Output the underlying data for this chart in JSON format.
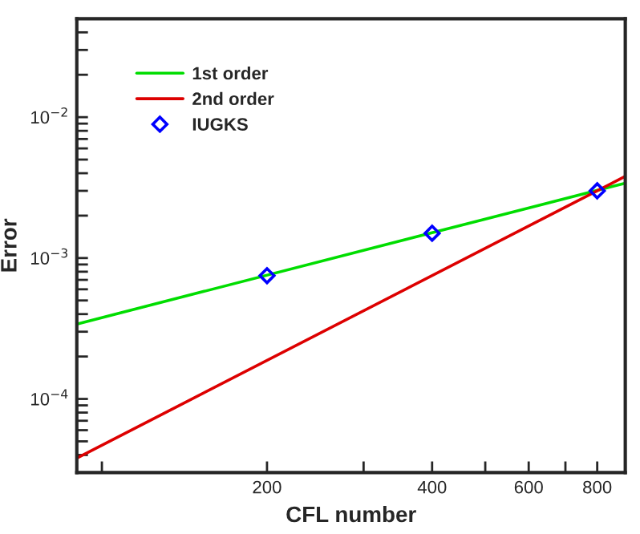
{
  "chart_data": {
    "type": "line",
    "xlabel": "CFL number",
    "ylabel": "Error",
    "log": "xy",
    "xlim": [
      90,
      900
    ],
    "ylim": [
      3e-05,
      0.05
    ],
    "xticks": [
      {
        "value": 100,
        "label": null
      },
      200,
      {
        "value": 300,
        "label": null
      },
      400,
      {
        "value": 500,
        "label": null
      },
      600,
      {
        "value": 700,
        "label": null
      },
      800,
      {
        "value": 900,
        "label": null
      }
    ],
    "yticks": [
      {
        "value": 4e-05,
        "label": null
      },
      {
        "value": 5e-05,
        "label": null
      },
      {
        "value": 6e-05,
        "label": null
      },
      {
        "value": 7e-05,
        "label": null
      },
      {
        "value": 8e-05,
        "label": null
      },
      {
        "value": 9e-05,
        "label": null
      },
      {
        "value": 0.0001,
        "label": "10$^{−4}$"
      },
      {
        "value": 0.0002,
        "label": null
      },
      {
        "value": 0.0003,
        "label": null
      },
      {
        "value": 0.0004,
        "label": null
      },
      {
        "value": 0.0005,
        "label": null
      },
      {
        "value": 0.0006,
        "label": null
      },
      {
        "value": 0.0007,
        "label": null
      },
      {
        "value": 0.0008,
        "label": null
      },
      {
        "value": 0.0009,
        "label": null
      },
      {
        "value": 0.001,
        "label": "10$^{−3}$"
      },
      {
        "value": 0.002,
        "label": null
      },
      {
        "value": 0.003,
        "label": null
      },
      {
        "value": 0.004,
        "label": null
      },
      {
        "value": 0.005,
        "label": null
      },
      {
        "value": 0.006,
        "label": null
      },
      {
        "value": 0.007,
        "label": null
      },
      {
        "value": 0.008,
        "label": null
      },
      {
        "value": 0.009,
        "label": null
      },
      {
        "value": 0.01,
        "label": "10$^{−2}$"
      },
      {
        "value": 0.02,
        "label": null
      },
      {
        "value": 0.03,
        "label": null
      },
      {
        "value": 0.04,
        "label": null
      }
    ],
    "grid": false,
    "legend": "top left",
    "series": [
      {
        "name": "1st order",
        "type": "line",
        "color": "#00dd00",
        "x": [
          90,
          900
        ],
        "values": [
          0.00034,
          0.0034
        ],
        "marker": "none",
        "line_style": "solid"
      },
      {
        "name": "2nd order",
        "type": "line",
        "color": "#dd0000",
        "x": [
          90,
          900
        ],
        "values": [
          3.8e-05,
          0.0038
        ],
        "marker": "none",
        "line_style": "solid"
      },
      {
        "name": "IUGKS",
        "type": "scatter",
        "color": "#0000ff",
        "x": [
          200,
          400,
          800
        ],
        "values": [
          0.00075,
          0.0015,
          0.003
        ],
        "marker": "diamond"
      }
    ]
  }
}
